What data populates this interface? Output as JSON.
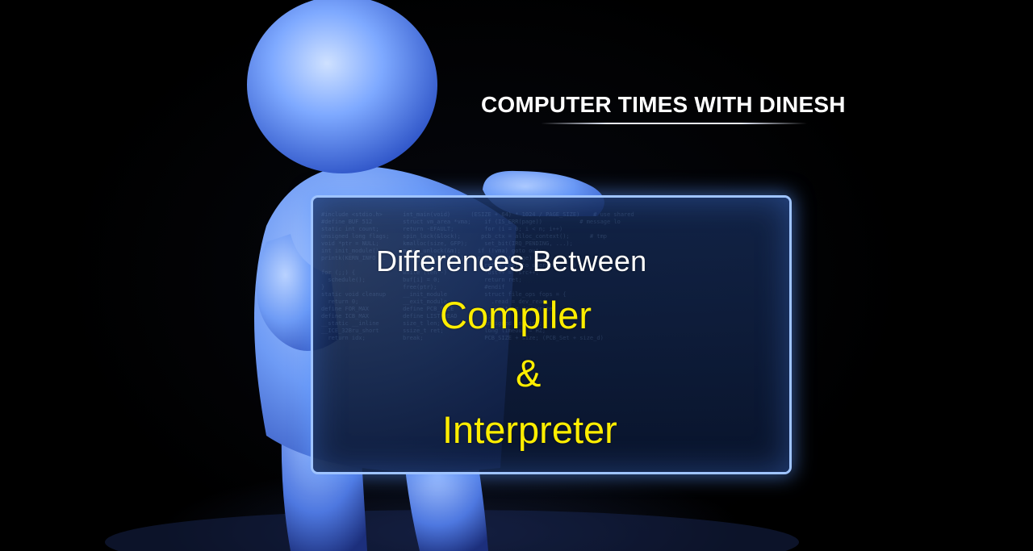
{
  "channel_title": "COMPUTER TIMES WITH DINESH",
  "board": {
    "heading": "Differences Between",
    "term_1": "Compiler",
    "connector": "&",
    "term_2": "Interpreter"
  },
  "colors": {
    "background": "#000000",
    "figure": "#5b8eff",
    "board_frame": "#9fc4ff",
    "heading_text": "#ffffff",
    "highlight_text": "#ffee00"
  }
}
